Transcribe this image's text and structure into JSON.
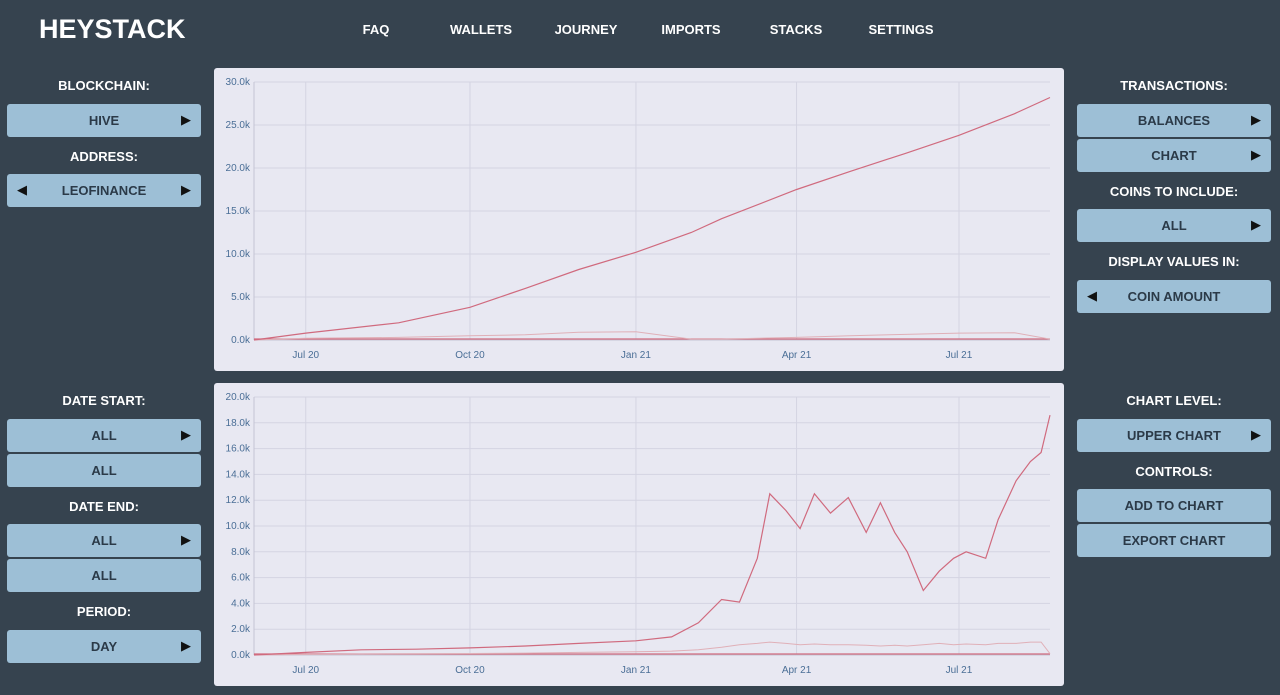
{
  "app": {
    "title": "HEYSTACK"
  },
  "nav": [
    {
      "label": "FAQ"
    },
    {
      "label": "WALLETS"
    },
    {
      "label": "JOURNEY"
    },
    {
      "label": "IMPORTS"
    },
    {
      "label": "STACKS"
    },
    {
      "label": "SETTINGS"
    }
  ],
  "left": {
    "blockchain_label": "BLOCKCHAIN:",
    "blockchain_value": "HIVE",
    "address_label": "ADDRESS:",
    "address_value": "LEOFINANCE",
    "date_start_label": "DATE START:",
    "date_start_value": "ALL",
    "date_start_value2": "ALL",
    "date_end_label": "DATE END:",
    "date_end_value": "ALL",
    "date_end_value2": "ALL",
    "period_label": "PERIOD:",
    "period_value": "DAY"
  },
  "right": {
    "transactions_label": "TRANSACTIONS:",
    "balances_button": "BALANCES",
    "chart_button": "CHART",
    "coins_label": "COINS TO INCLUDE:",
    "coins_value": "ALL",
    "display_label": "DISPLAY VALUES IN:",
    "display_value": "COIN AMOUNT",
    "chart_level_label": "CHART LEVEL:",
    "chart_level_value": "UPPER CHART",
    "controls_label": "CONTROLS:",
    "add_button": "ADD TO CHART",
    "export_button": "EXPORT CHART"
  },
  "icons": {
    "arrow_right": "▶",
    "arrow_left": "◀"
  },
  "colors": {
    "primary_line": "#d06a7e",
    "secondary_line": "#e0b0b8",
    "button_bg": "#9dbfd6",
    "page_bg": "#36434f"
  },
  "chart_data": [
    {
      "type": "line",
      "title": "",
      "x_ticks": [
        "Jul 20",
        "Oct 20",
        "Jan 21",
        "Apr 21",
        "Jul 21"
      ],
      "y_ticks": [
        "0.0k",
        "5.0k",
        "10.0k",
        "15.0k",
        "20.0k",
        "25.0k",
        "30.0k"
      ],
      "ylim": [
        0,
        30000
      ],
      "x": [
        "2020-06-21",
        "2020-07-20",
        "2020-09-10",
        "2020-10-20",
        "2020-11-20",
        "2020-12-20",
        "2021-01-21",
        "2021-02-21",
        "2021-03-10",
        "2021-04-21",
        "2021-05-21",
        "2021-06-21",
        "2021-07-21",
        "2021-08-21",
        "2021-09-10"
      ],
      "series": [
        {
          "values": [
            0,
            800,
            2000,
            3800,
            6000,
            8200,
            10200,
            12500,
            14100,
            17500,
            19600,
            21700,
            23800,
            26300,
            28200
          ]
        },
        {
          "values": [
            0,
            200,
            300,
            500,
            600,
            900,
            950,
            100,
            100,
            300,
            500,
            650,
            800,
            850,
            100
          ]
        }
      ]
    },
    {
      "type": "line",
      "title": "",
      "x_ticks": [
        "Jul 20",
        "Oct 20",
        "Jan 21",
        "Apr 21",
        "Jul 21"
      ],
      "y_ticks": [
        "0.0k",
        "2.0k",
        "4.0k",
        "6.0k",
        "8.0k",
        "10.0k",
        "12.0k",
        "14.0k",
        "16.0k",
        "18.0k",
        "20.0k"
      ],
      "ylim": [
        0,
        20000
      ],
      "x": [
        "2020-06-21",
        "2020-07-20",
        "2020-08-20",
        "2020-09-20",
        "2020-10-20",
        "2020-11-20",
        "2020-12-20",
        "2021-01-21",
        "2021-02-10",
        "2021-02-25",
        "2021-03-10",
        "2021-03-20",
        "2021-03-30",
        "2021-04-06",
        "2021-04-15",
        "2021-04-23",
        "2021-05-01",
        "2021-05-10",
        "2021-05-20",
        "2021-05-30",
        "2021-06-07",
        "2021-06-15",
        "2021-06-22",
        "2021-07-01",
        "2021-07-10",
        "2021-07-18",
        "2021-07-25",
        "2021-08-05",
        "2021-08-12",
        "2021-08-22",
        "2021-08-30",
        "2021-09-05",
        "2021-09-10"
      ],
      "series": [
        {
          "values": [
            0,
            200,
            400,
            450,
            550,
            700,
            900,
            1100,
            1400,
            2500,
            4300,
            4100,
            7500,
            12500,
            11200,
            9800,
            12500,
            11000,
            12200,
            9500,
            11800,
            9500,
            8000,
            5000,
            6500,
            7500,
            8000,
            7500,
            10500,
            13500,
            15000,
            15700,
            18600
          ]
        },
        {
          "values": [
            0,
            50,
            80,
            100,
            120,
            150,
            200,
            250,
            300,
            400,
            600,
            800,
            900,
            1000,
            900,
            800,
            850,
            800,
            800,
            750,
            700,
            750,
            700,
            800,
            900,
            800,
            850,
            800,
            900,
            900,
            1000,
            1000,
            100
          ]
        }
      ]
    }
  ]
}
